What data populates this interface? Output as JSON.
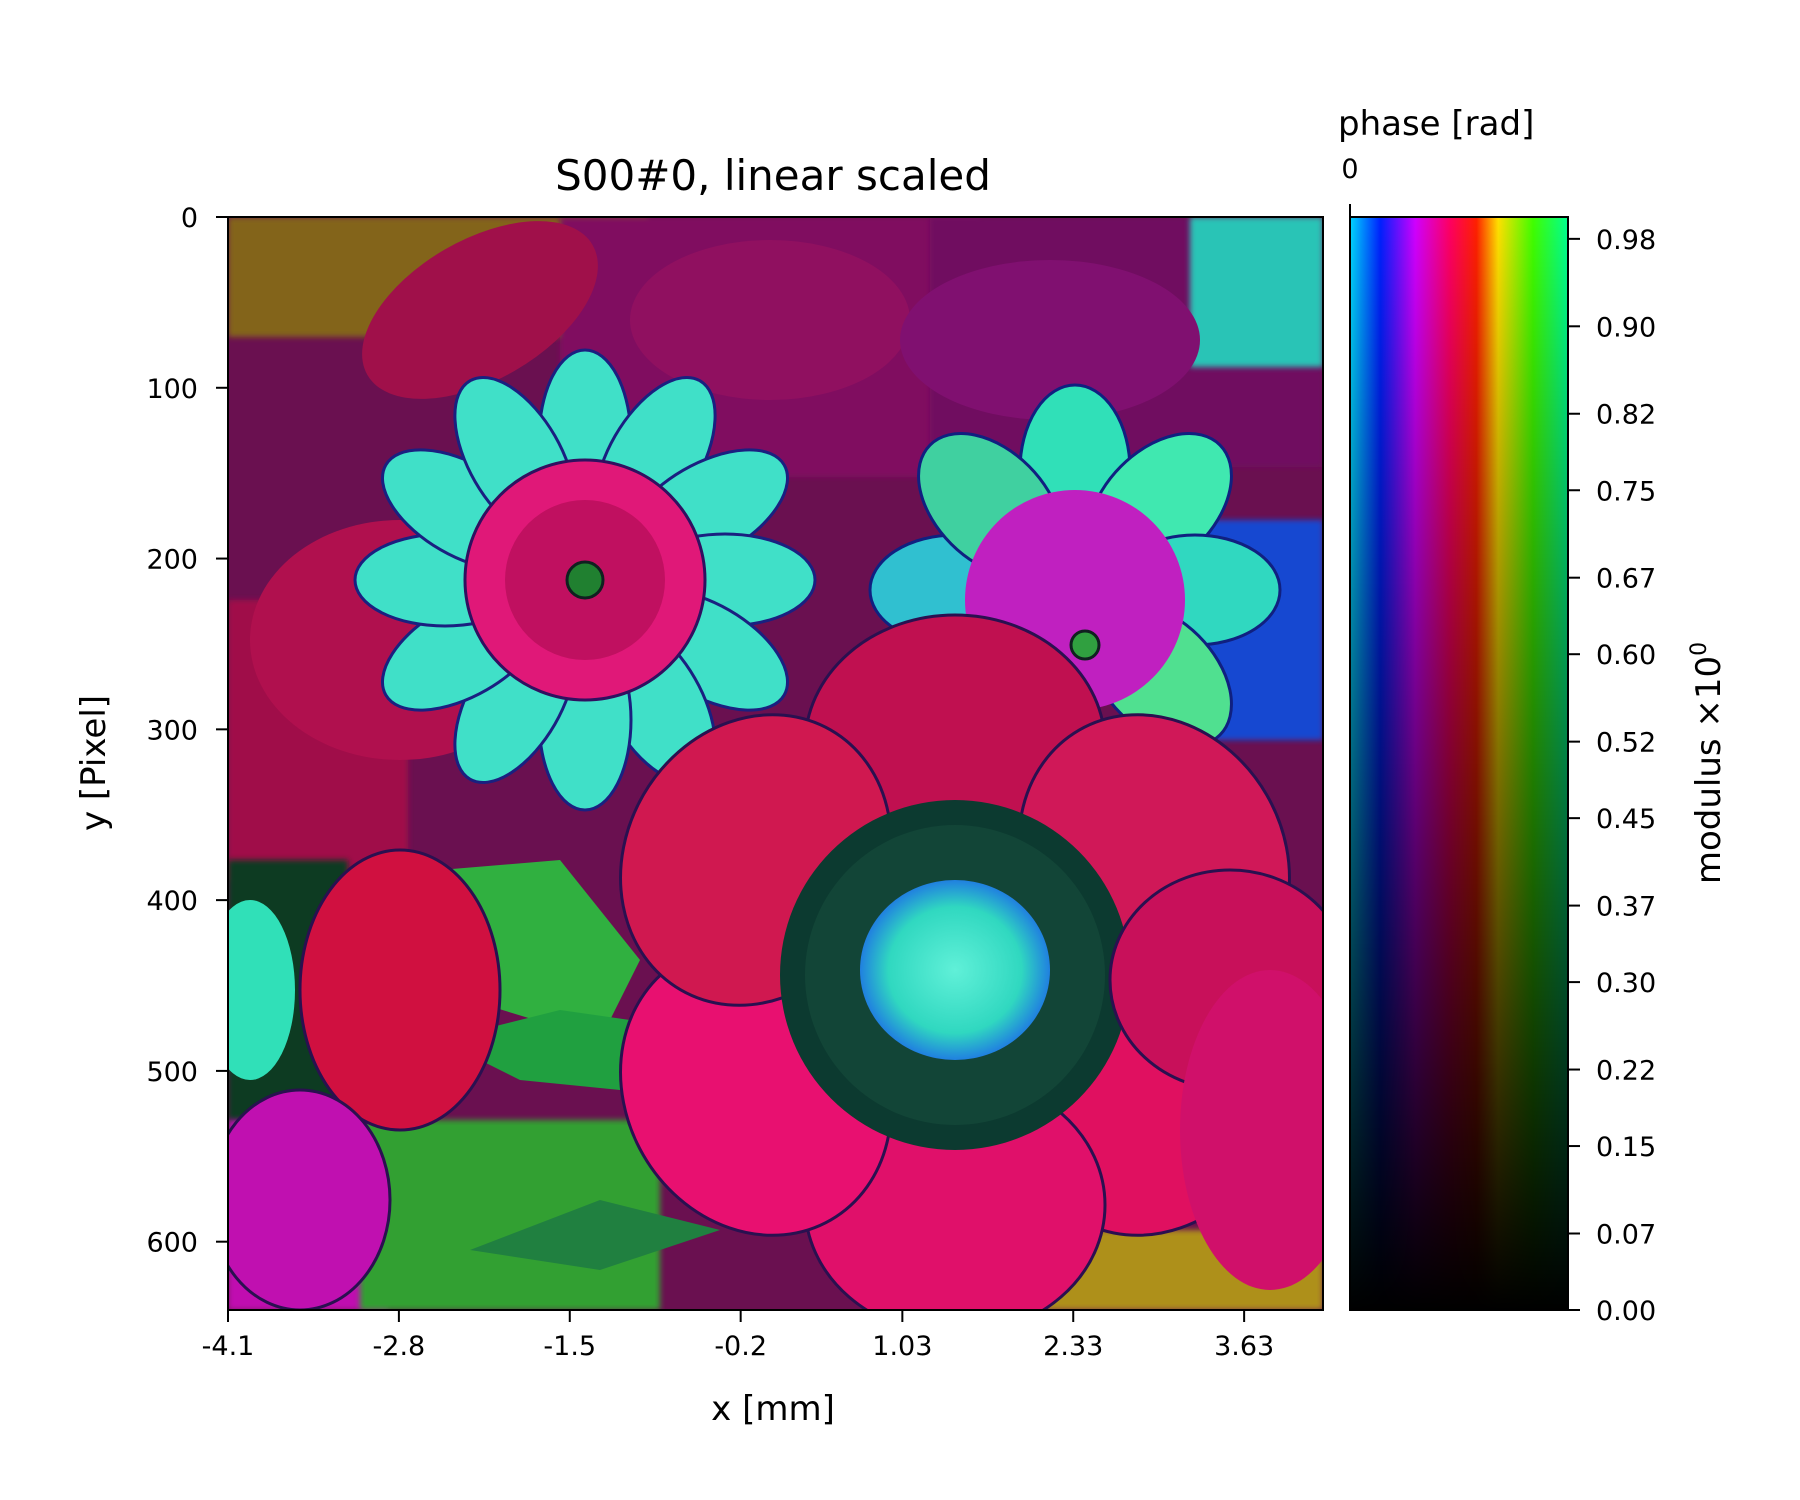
{
  "chart_data": {
    "type": "heatmap",
    "title": "S00#0, linear scaled",
    "xlabel": "x [mm]",
    "ylabel": "y [Pixel]",
    "x_ticks": [
      "-4.1",
      "-2.8",
      "-1.5",
      "-0.2",
      "1.03",
      "2.33",
      "3.63"
    ],
    "x_tick_values": [
      -4.1,
      -2.8,
      -1.5,
      -0.2,
      1.03,
      2.33,
      3.63
    ],
    "xlim": [
      -4.1,
      4.23
    ],
    "y_ticks": [
      "0",
      "100",
      "200",
      "300",
      "400",
      "500",
      "600"
    ],
    "y_tick_values": [
      0,
      100,
      200,
      300,
      400,
      500,
      600
    ],
    "ylim": [
      640,
      0
    ],
    "colorbar": {
      "top_label": "phase [rad]",
      "top_tick": "0",
      "label_main": "modulus ×10",
      "label_exp": "0",
      "ticks": [
        "0.98",
        "0.90",
        "0.82",
        "0.75",
        "0.67",
        "0.60",
        "0.52",
        "0.45",
        "0.37",
        "0.30",
        "0.22",
        "0.15",
        "0.07",
        "0.00"
      ],
      "tick_values": [
        0.98,
        0.9,
        0.82,
        0.75,
        0.67,
        0.6,
        0.52,
        0.45,
        0.37,
        0.3,
        0.22,
        0.15,
        0.07,
        0.0
      ],
      "range": [
        0,
        1.0
      ],
      "hue_stops": [
        "#00d8ff",
        "#0020ff",
        "#d000ff",
        "#ff0060",
        "#ff2000",
        "#ffe000",
        "#40ff00",
        "#00ff90"
      ]
    },
    "image_description_colors": {
      "petal": "#e0105a",
      "flower_center": "#40e0c8",
      "leaf": "#20b040",
      "magenta": "#c000b0",
      "background_dark": "#701050"
    }
  }
}
